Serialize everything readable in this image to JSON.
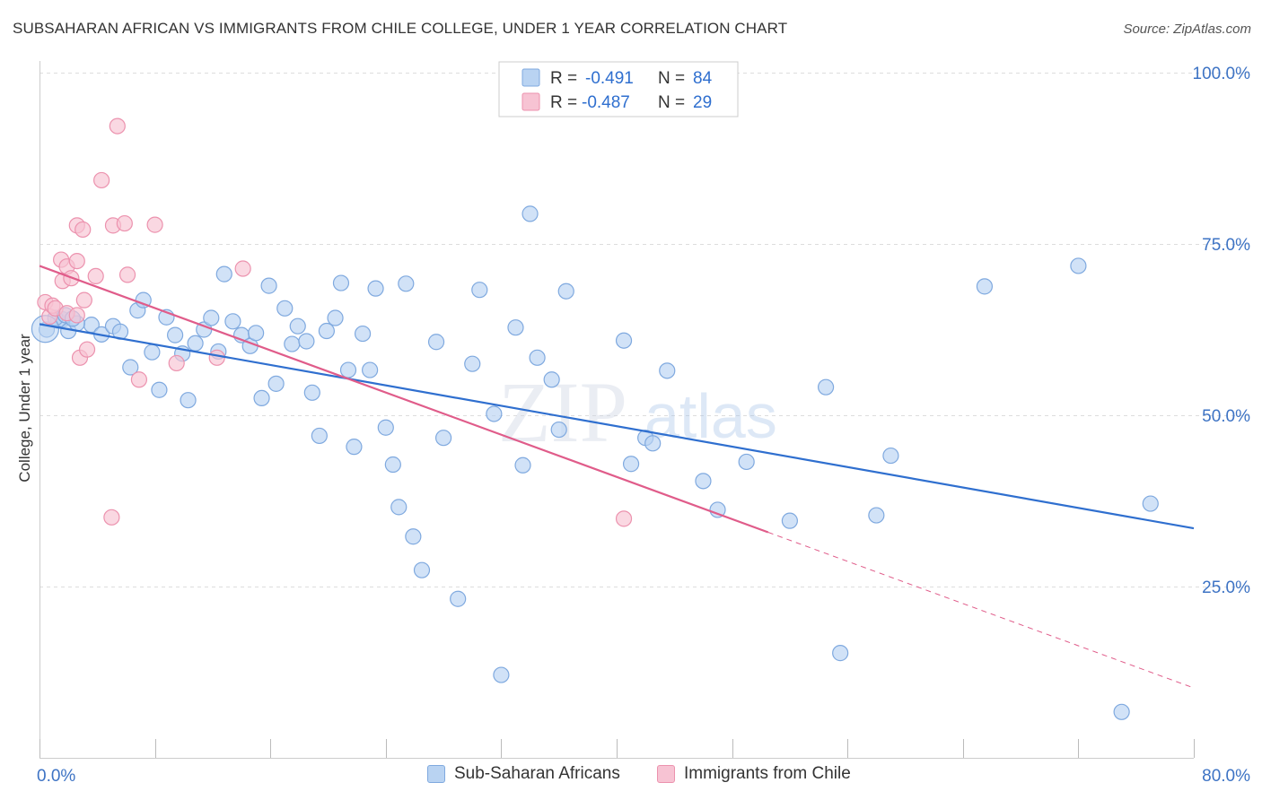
{
  "header": {
    "title": "SUBSAHARAN AFRICAN VS IMMIGRANTS FROM CHILE COLLEGE, UNDER 1 YEAR CORRELATION CHART",
    "source": "Source: ZipAtlas.com"
  },
  "watermark": {
    "text_zip": "ZIP",
    "text_atlas": "atlas"
  },
  "legend_top": {
    "rows": [
      {
        "r_label": "R =",
        "r_value": "-0.491",
        "n_label": "N =",
        "n_value": "84"
      },
      {
        "r_label": "R =",
        "r_value": "-0.487",
        "n_label": "N =",
        "n_value": "29"
      }
    ]
  },
  "legend_bottom": {
    "items": [
      {
        "label": "Sub-Saharan Africans"
      },
      {
        "label": "Immigrants from Chile"
      }
    ]
  },
  "colors": {
    "blue_fill": "#b9d3f2",
    "blue_stroke": "#7fa9df",
    "blue_line": "#2f6fcf",
    "pink_fill": "#f7c3d3",
    "pink_stroke": "#ec92ae",
    "pink_line": "#e05c8a",
    "tick_text": "#3d73c4",
    "grid": "#dddddd"
  },
  "chart_data": {
    "type": "scatter",
    "xlabel": "",
    "ylabel": "College, Under 1 year",
    "xlim": [
      0,
      80
    ],
    "ylim": [
      0,
      100
    ],
    "x_tick_labels": [
      {
        "value": 0,
        "label": "0.0%"
      },
      {
        "value": 80,
        "label": "80.0%"
      }
    ],
    "y_tick_labels": [
      {
        "value": 25,
        "label": "25.0%"
      },
      {
        "value": 50,
        "label": "50.0%"
      },
      {
        "value": 75,
        "label": "75.0%"
      },
      {
        "value": 100,
        "label": "100.0%"
      }
    ],
    "grid": "horizontal dashed",
    "legend_placement": "top-center",
    "series": [
      {
        "name": "Sub-Saharan Africans",
        "color": "#b9d3f2",
        "r": -0.491,
        "n": 84,
        "trend": {
          "x": [
            0,
            80
          ],
          "y": [
            63.3,
            33.5
          ],
          "dashed_from": null
        },
        "points": [
          [
            0.5,
            62.5
          ],
          [
            1.3,
            63.8
          ],
          [
            1.6,
            64.0
          ],
          [
            2.0,
            62.3
          ],
          [
            3.6,
            63.2
          ],
          [
            4.3,
            61.8
          ],
          [
            5.1,
            63.0
          ],
          [
            5.6,
            62.2
          ],
          [
            6.3,
            57.0
          ],
          [
            6.8,
            65.3
          ],
          [
            7.2,
            66.8
          ],
          [
            7.8,
            59.2
          ],
          [
            8.3,
            53.7
          ],
          [
            8.8,
            64.3
          ],
          [
            9.4,
            61.7
          ],
          [
            9.9,
            59.0
          ],
          [
            10.3,
            52.2
          ],
          [
            10.8,
            60.5
          ],
          [
            11.4,
            62.5
          ],
          [
            11.9,
            64.2
          ],
          [
            12.4,
            59.3
          ],
          [
            12.8,
            70.6
          ],
          [
            13.4,
            63.7
          ],
          [
            14.0,
            61.7
          ],
          [
            14.6,
            60.1
          ],
          [
            15.0,
            62.0
          ],
          [
            15.4,
            52.5
          ],
          [
            15.9,
            68.9
          ],
          [
            16.4,
            54.6
          ],
          [
            17.0,
            65.6
          ],
          [
            17.5,
            60.4
          ],
          [
            17.9,
            63.0
          ],
          [
            18.5,
            60.8
          ],
          [
            18.9,
            53.3
          ],
          [
            19.4,
            47.0
          ],
          [
            19.9,
            62.3
          ],
          [
            20.5,
            64.2
          ],
          [
            20.9,
            69.3
          ],
          [
            21.4,
            56.6
          ],
          [
            21.8,
            45.4
          ],
          [
            22.4,
            61.9
          ],
          [
            22.9,
            56.6
          ],
          [
            23.3,
            68.5
          ],
          [
            24.0,
            48.2
          ],
          [
            24.5,
            42.8
          ],
          [
            24.9,
            36.6
          ],
          [
            25.4,
            69.2
          ],
          [
            25.9,
            32.3
          ],
          [
            26.5,
            27.4
          ],
          [
            27.5,
            60.7
          ],
          [
            28.0,
            46.7
          ],
          [
            29.0,
            23.2
          ],
          [
            30.0,
            57.5
          ],
          [
            30.5,
            68.3
          ],
          [
            31.5,
            50.2
          ],
          [
            32.0,
            12.1
          ],
          [
            33.0,
            62.8
          ],
          [
            33.5,
            42.7
          ],
          [
            34.0,
            79.4
          ],
          [
            34.5,
            58.4
          ],
          [
            35.5,
            55.2
          ],
          [
            36.0,
            47.9
          ],
          [
            36.5,
            68.1
          ],
          [
            40.5,
            60.9
          ],
          [
            41.0,
            42.9
          ],
          [
            42.0,
            46.7
          ],
          [
            42.5,
            45.9
          ],
          [
            43.5,
            56.5
          ],
          [
            46.0,
            40.4
          ],
          [
            47.0,
            36.2
          ],
          [
            49.0,
            43.2
          ],
          [
            52.0,
            34.6
          ],
          [
            54.5,
            54.1
          ],
          [
            55.5,
            15.3
          ],
          [
            58.0,
            35.4
          ],
          [
            59.0,
            44.1
          ],
          [
            65.5,
            68.8
          ],
          [
            72.0,
            71.8
          ],
          [
            75.0,
            6.7
          ],
          [
            77.0,
            37.1
          ],
          [
            1.1,
            64.2
          ],
          [
            1.8,
            64.6
          ],
          [
            2.6,
            63.4
          ],
          [
            2.3,
            64.1
          ]
        ]
      },
      {
        "name": "Immigrants from Chile",
        "color": "#f7c3d3",
        "r": -0.487,
        "n": 29,
        "trend": {
          "x": [
            0,
            80
          ],
          "y": [
            71.8,
            10.2
          ],
          "dashed_from": 50.5
        },
        "points": [
          [
            0.4,
            66.5
          ],
          [
            0.7,
            64.4
          ],
          [
            0.9,
            66.0
          ],
          [
            1.1,
            65.6
          ],
          [
            1.5,
            72.7
          ],
          [
            1.6,
            69.6
          ],
          [
            1.9,
            71.7
          ],
          [
            1.9,
            64.9
          ],
          [
            2.2,
            70.0
          ],
          [
            2.6,
            72.5
          ],
          [
            2.6,
            64.6
          ],
          [
            2.6,
            77.7
          ],
          [
            2.8,
            58.4
          ],
          [
            3.0,
            77.1
          ],
          [
            3.1,
            66.8
          ],
          [
            3.3,
            59.6
          ],
          [
            3.9,
            70.3
          ],
          [
            4.3,
            84.3
          ],
          [
            5.0,
            35.1
          ],
          [
            5.1,
            77.7
          ],
          [
            5.4,
            92.2
          ],
          [
            5.9,
            78.0
          ],
          [
            6.1,
            70.5
          ],
          [
            6.9,
            55.2
          ],
          [
            8.0,
            77.8
          ],
          [
            9.5,
            57.6
          ],
          [
            12.3,
            58.4
          ],
          [
            14.1,
            71.4
          ],
          [
            40.5,
            34.9
          ]
        ]
      }
    ]
  }
}
